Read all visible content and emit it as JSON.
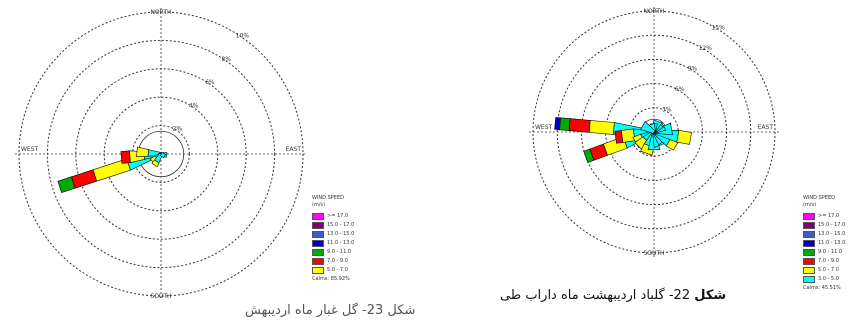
{
  "chart_data": [
    {
      "type": "wind-rose",
      "title": "",
      "directions": {
        "north": "NORTH",
        "south": "SOUTH",
        "east": "EAST",
        "west": "WEST"
      },
      "rings": [
        "2%",
        "4%",
        "6%",
        "8%",
        "10%"
      ],
      "ring_values": [
        2,
        4,
        6,
        8,
        10
      ],
      "legend": {
        "title": "WIND SPEED",
        "unit": "(m/s)",
        "bins": [
          ">= 17.0",
          "15.0 - 17.0",
          "13.0 - 15.0",
          "11.0 - 13.0",
          "9.0 - 11.0",
          "7.0 - 9.0",
          "5.0 - 7.0"
        ],
        "calms": "Calms: 85.92%"
      },
      "petals": [
        {
          "direction_deg": 252,
          "segments": [
            2.4,
            2.5,
            1.6,
            1.0
          ]
        },
        {
          "direction_deg": 265,
          "segments": [
            1.2,
            1.0,
            0.6
          ]
        },
        {
          "direction_deg": 275,
          "segments": [
            0.9,
            0.8
          ]
        },
        {
          "direction_deg": 230,
          "segments": [
            0.4,
            0.4
          ]
        },
        {
          "direction_deg": 210,
          "segments": [
            0.6,
            0.3
          ]
        },
        {
          "direction_deg": 100,
          "segments": [
            0.4
          ]
        },
        {
          "direction_deg": 120,
          "segments": [
            0.3
          ]
        }
      ]
    },
    {
      "type": "wind-rose",
      "title": "",
      "directions": {
        "north": "NORTH",
        "south": "SOUTH",
        "east": "EAST",
        "west": "WEST"
      },
      "rings": [
        "3%",
        "6%",
        "9%",
        "12%",
        "15%"
      ],
      "ring_values": [
        3,
        6,
        9,
        12,
        15
      ],
      "legend": {
        "title": "WIND SPEED",
        "unit": "(m/s)",
        "bins": [
          ">= 17.0",
          "15.0 - 17.0",
          "13.0 - 15.0",
          "11.0 - 13.0",
          "9.0 - 11.0",
          "7.0 - 9.0",
          "5.0 - 7.0",
          "3.0 - 5.0"
        ],
        "calms": "Calms: 45.51%"
      },
      "petals": [
        {
          "direction_deg": 275,
          "segments": [
            5.0,
            3.0,
            2.5,
            1.2,
            0.6
          ]
        },
        {
          "direction_deg": 250,
          "segments": [
            3.8,
            2.6,
            1.8,
            0.8
          ]
        },
        {
          "direction_deg": 262,
          "segments": [
            2.5,
            1.5,
            0.8
          ]
        },
        {
          "direction_deg": 240,
          "segments": [
            1.6,
            1.0
          ]
        },
        {
          "direction_deg": 225,
          "segments": [
            1.4,
            1.2
          ]
        },
        {
          "direction_deg": 200,
          "segments": [
            1.8,
            1.0
          ]
        },
        {
          "direction_deg": 180,
          "segments": [
            2.2
          ]
        },
        {
          "direction_deg": 160,
          "segments": [
            1.8
          ]
        },
        {
          "direction_deg": 140,
          "segments": [
            1.6
          ]
        },
        {
          "direction_deg": 120,
          "segments": [
            2.2,
            1.0
          ]
        },
        {
          "direction_deg": 100,
          "segments": [
            3.0,
            1.6
          ]
        },
        {
          "direction_deg": 80,
          "segments": [
            2.2
          ]
        },
        {
          "direction_deg": 60,
          "segments": [
            1.4
          ]
        },
        {
          "direction_deg": 40,
          "segments": [
            1.2
          ]
        },
        {
          "direction_deg": 20,
          "segments": [
            1.4
          ]
        },
        {
          "direction_deg": 0,
          "segments": [
            1.0
          ]
        },
        {
          "direction_deg": 340,
          "segments": [
            1.0
          ]
        },
        {
          "direction_deg": 300,
          "segments": [
            1.6
          ]
        }
      ]
    }
  ],
  "colors": {
    "bins": [
      "#ff00ff",
      "#800080",
      "#3a5fcd",
      "#0000cc",
      "#00aa00",
      "#ff0000",
      "#ffff00",
      "#00ffff"
    ],
    "ring_stroke": "#333333"
  },
  "captions": {
    "right_bold": "شکل",
    "right_number": "22",
    "right_rest": "- گلباد اردیبهشت ماه داراب طی",
    "left_text": "شکل 23- گل غبار ماه اردیبهش"
  }
}
